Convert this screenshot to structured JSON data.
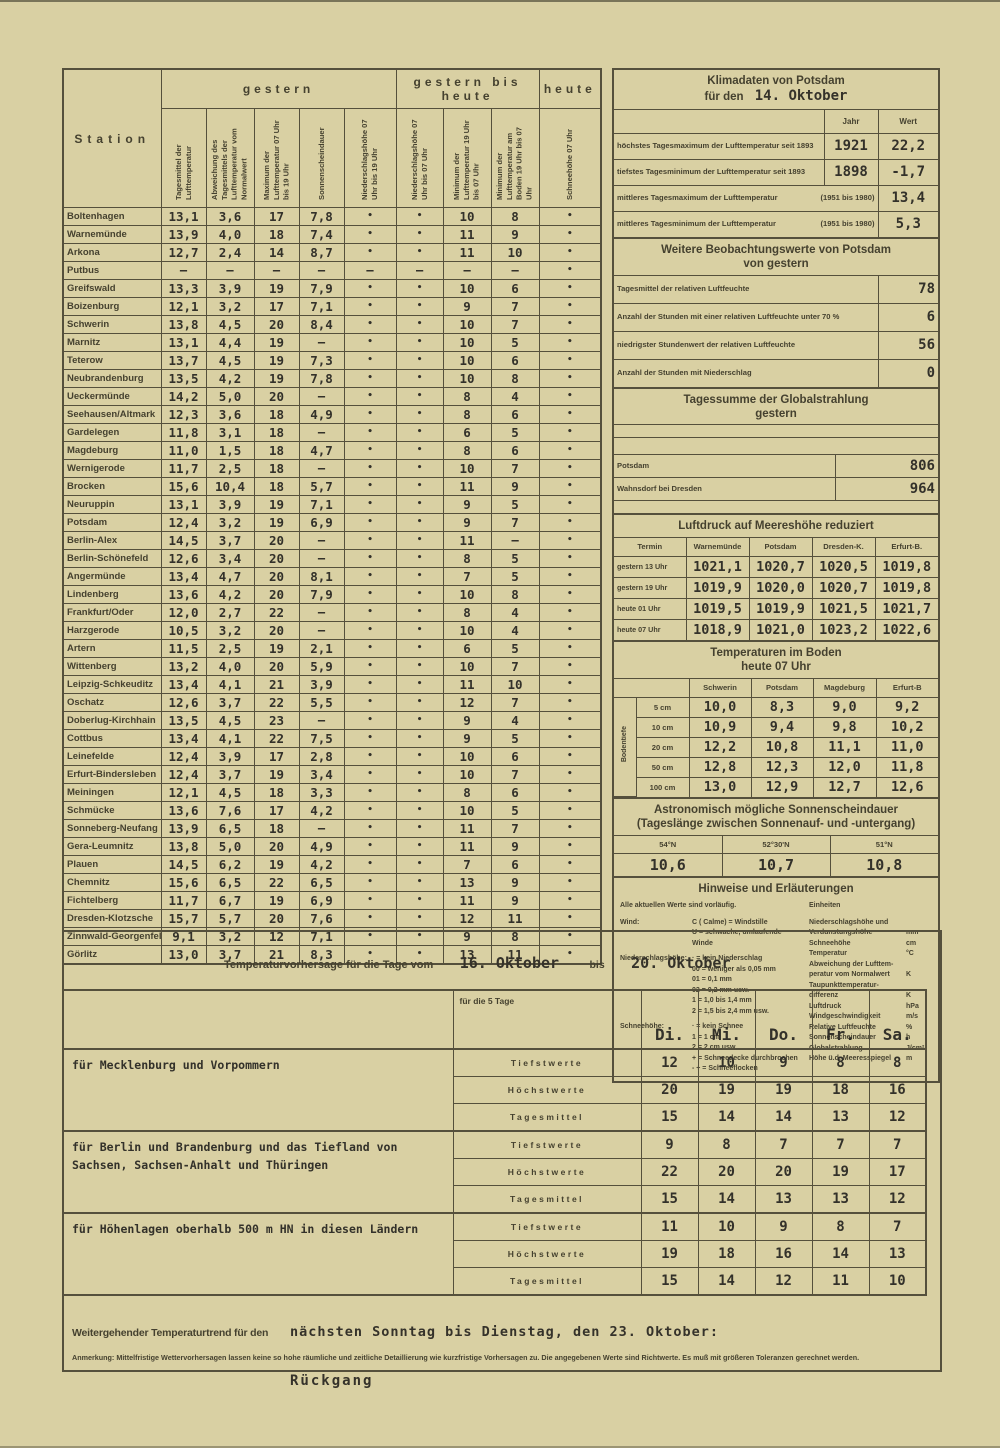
{
  "station_table": {
    "station_header": "Station",
    "groups": [
      {
        "label": "gestern",
        "span": 5
      },
      {
        "label": "gestern bis heute",
        "span": 3
      },
      {
        "label": "heute",
        "span": 1
      }
    ],
    "columns": [
      "Tagesmittel der Lufttemperatur",
      "Abweichung des Tagesmittels der Lufttemperatur vom Normalwert",
      "Maximum der Lufttemperatur 07 Uhr bis 19 Uhr",
      "Sonnenscheindauer",
      "Niederschlagshöhe 07 Uhr bis 19 Uhr",
      "Niederschlagshöhe 07 Uhr bis 07 Uhr",
      "Minimum der Lufttemperatur 19 Uhr bis 07 Uhr",
      "Minimum der Lufttemperatur am Boden 19 Uhr bis 07 Uhr",
      "Schneehöhe 07 Uhr"
    ],
    "rows": [
      {
        "station": "Boltenhagen",
        "values": [
          "13,1",
          "3,6",
          "17",
          "7,8",
          "•",
          "•",
          "10",
          "8",
          "•"
        ]
      },
      {
        "station": "Warnemünde",
        "values": [
          "13,9",
          "4,0",
          "18",
          "7,4",
          "•",
          "•",
          "11",
          "9",
          "•"
        ]
      },
      {
        "station": "Arkona",
        "values": [
          "12,7",
          "2,4",
          "14",
          "8,7",
          "•",
          "•",
          "11",
          "10",
          "•"
        ]
      },
      {
        "station": "Putbus",
        "values": [
          "–",
          "–",
          "–",
          "–",
          "–",
          "–",
          "–",
          "–",
          "•"
        ]
      },
      {
        "station": "Greifswald",
        "values": [
          "13,3",
          "3,9",
          "19",
          "7,9",
          "•",
          "•",
          "10",
          "6",
          "•"
        ]
      },
      {
        "station": "Boizenburg",
        "values": [
          "12,1",
          "3,2",
          "17",
          "7,1",
          "•",
          "•",
          "9",
          "7",
          "•"
        ]
      },
      {
        "station": "Schwerin",
        "values": [
          "13,8",
          "4,5",
          "20",
          "8,4",
          "•",
          "•",
          "10",
          "7",
          "•"
        ]
      },
      {
        "station": "Marnitz",
        "values": [
          "13,1",
          "4,4",
          "19",
          "–",
          "•",
          "•",
          "10",
          "5",
          "•"
        ]
      },
      {
        "station": "Teterow",
        "values": [
          "13,7",
          "4,5",
          "19",
          "7,3",
          "•",
          "•",
          "10",
          "6",
          "•"
        ]
      },
      {
        "station": "Neubrandenburg",
        "values": [
          "13,5",
          "4,2",
          "19",
          "7,8",
          "•",
          "•",
          "10",
          "8",
          "•"
        ]
      },
      {
        "station": "Ueckermünde",
        "values": [
          "14,2",
          "5,0",
          "20",
          "–",
          "•",
          "•",
          "8",
          "4",
          "•"
        ]
      },
      {
        "station": "Seehausen/Altmark",
        "values": [
          "12,3",
          "3,6",
          "18",
          "4,9",
          "•",
          "•",
          "8",
          "6",
          "•"
        ]
      },
      {
        "station": "Gardelegen",
        "values": [
          "11,8",
          "3,1",
          "18",
          "–",
          "•",
          "•",
          "6",
          "5",
          "•"
        ]
      },
      {
        "station": "Magdeburg",
        "values": [
          "11,0",
          "1,5",
          "18",
          "4,7",
          "•",
          "•",
          "8",
          "6",
          "•"
        ]
      },
      {
        "station": "Wernigerode",
        "values": [
          "11,7",
          "2,5",
          "18",
          "–",
          "•",
          "•",
          "10",
          "7",
          "•"
        ]
      },
      {
        "station": "Brocken",
        "values": [
          "15,6",
          "10,4",
          "18",
          "5,7",
          "•",
          "•",
          "11",
          "9",
          "•"
        ]
      },
      {
        "station": "Neuruppin",
        "values": [
          "13,1",
          "3,9",
          "19",
          "7,1",
          "•",
          "•",
          "9",
          "5",
          "•"
        ]
      },
      {
        "station": "Potsdam",
        "values": [
          "12,4",
          "3,2",
          "19",
          "6,9",
          "•",
          "•",
          "9",
          "7",
          "•"
        ]
      },
      {
        "station": "Berlin-Alex",
        "values": [
          "14,5",
          "3,7",
          "20",
          "–",
          "•",
          "•",
          "11",
          "–",
          "•"
        ]
      },
      {
        "station": "Berlin-Schönefeld",
        "values": [
          "12,6",
          "3,4",
          "20",
          "–",
          "•",
          "•",
          "8",
          "5",
          "•"
        ]
      },
      {
        "station": "Angermünde",
        "values": [
          "13,4",
          "4,7",
          "20",
          "8,1",
          "•",
          "•",
          "7",
          "5",
          "•"
        ]
      },
      {
        "station": "Lindenberg",
        "values": [
          "13,6",
          "4,2",
          "20",
          "7,9",
          "•",
          "•",
          "10",
          "8",
          "•"
        ]
      },
      {
        "station": "Frankfurt/Oder",
        "values": [
          "12,0",
          "2,7",
          "22",
          "–",
          "•",
          "•",
          "8",
          "4",
          "•"
        ]
      },
      {
        "station": "Harzgerode",
        "values": [
          "10,5",
          "3,2",
          "20",
          "–",
          "•",
          "•",
          "10",
          "4",
          "•"
        ]
      },
      {
        "station": "Artern",
        "values": [
          "11,5",
          "2,5",
          "19",
          "2,1",
          "•",
          "•",
          "6",
          "5",
          "•"
        ]
      },
      {
        "station": "Wittenberg",
        "values": [
          "13,2",
          "4,0",
          "20",
          "5,9",
          "•",
          "•",
          "10",
          "7",
          "•"
        ]
      },
      {
        "station": "Leipzig-Schkeuditz",
        "values": [
          "13,4",
          "4,1",
          "21",
          "3,9",
          "•",
          "•",
          "11",
          "10",
          "•"
        ]
      },
      {
        "station": "Oschatz",
        "values": [
          "12,6",
          "3,7",
          "22",
          "5,5",
          "•",
          "•",
          "12",
          "7",
          "•"
        ]
      },
      {
        "station": "Doberlug-Kirchhain",
        "values": [
          "13,5",
          "4,5",
          "23",
          "–",
          "•",
          "•",
          "9",
          "4",
          "•"
        ]
      },
      {
        "station": "Cottbus",
        "values": [
          "13,4",
          "4,1",
          "22",
          "7,5",
          "•",
          "•",
          "9",
          "5",
          "•"
        ]
      },
      {
        "station": "Leinefelde",
        "values": [
          "12,4",
          "3,9",
          "17",
          "2,8",
          "•",
          "•",
          "10",
          "6",
          "•"
        ]
      },
      {
        "station": "Erfurt-Bindersleben",
        "values": [
          "12,4",
          "3,7",
          "19",
          "3,4",
          "•",
          "•",
          "10",
          "7",
          "•"
        ]
      },
      {
        "station": "Meiningen",
        "values": [
          "12,1",
          "4,5",
          "18",
          "3,3",
          "•",
          "•",
          "8",
          "6",
          "•"
        ]
      },
      {
        "station": "Schmücke",
        "values": [
          "13,6",
          "7,6",
          "17",
          "4,2",
          "•",
          "•",
          "10",
          "5",
          "•"
        ]
      },
      {
        "station": "Sonneberg-Neufang",
        "values": [
          "13,9",
          "6,5",
          "18",
          "–",
          "•",
          "•",
          "11",
          "7",
          "•"
        ]
      },
      {
        "station": "Gera-Leumnitz",
        "values": [
          "13,8",
          "5,0",
          "20",
          "4,9",
          "•",
          "•",
          "11",
          "9",
          "•"
        ]
      },
      {
        "station": "Plauen",
        "values": [
          "14,5",
          "6,2",
          "19",
          "4,2",
          "•",
          "•",
          "7",
          "6",
          "•"
        ]
      },
      {
        "station": "Chemnitz",
        "values": [
          "15,6",
          "6,5",
          "22",
          "6,5",
          "•",
          "•",
          "13",
          "9",
          "•"
        ]
      },
      {
        "station": "Fichtelberg",
        "values": [
          "11,7",
          "6,7",
          "19",
          "6,9",
          "•",
          "•",
          "11",
          "9",
          "•"
        ]
      },
      {
        "station": "Dresden-Klotzsche",
        "values": [
          "15,7",
          "5,7",
          "20",
          "7,6",
          "•",
          "•",
          "12",
          "11",
          "•"
        ]
      },
      {
        "station": "Zinnwald-Georgenfeld",
        "values": [
          "9,1",
          "3,2",
          "12",
          "7,1",
          "•",
          "•",
          "9",
          "8",
          "•"
        ]
      },
      {
        "station": "Görlitz",
        "values": [
          "13,0",
          "3,7",
          "21",
          "8,3",
          "•",
          "•",
          "13",
          "11",
          "•"
        ]
      }
    ]
  },
  "klimadaten": {
    "title_line1": "Klimadaten von Potsdam",
    "title_line2_label": "für den",
    "title_line2_date": "14. Oktober",
    "col_jahr": "Jahr",
    "col_wert": "Wert",
    "rows": [
      {
        "label": "höchstes Tagesmaximum der Lufttemperatur seit 1893",
        "period": "",
        "jahr": "1921",
        "wert": "22,2"
      },
      {
        "label": "tiefstes Tagesminimum der Lufttemperatur seit 1893",
        "period": "",
        "jahr": "1898",
        "wert": "-1,7"
      },
      {
        "label": "mittleres Tagesmaximum der Lufttemperatur",
        "period": "(1951 bis 1980)",
        "jahr": "",
        "wert": "13,4"
      },
      {
        "label": "mittleres Tagesminimum der Lufttemperatur",
        "period": "(1951 bis 1980)",
        "jahr": "",
        "wert": "5,3"
      }
    ]
  },
  "beobachtung": {
    "title_line1": "Weitere Beobachtungswerte von Potsdam",
    "title_line2": "von gestern",
    "rows": [
      {
        "label": "Tagesmittel der relativen Luftfeuchte",
        "value": "78"
      },
      {
        "label": "Anzahl der Stunden mit einer relativen Luftfeuchte unter 70 %",
        "value": "6"
      },
      {
        "label": "niedrigster Stundenwert der relativen Luftfeuchte",
        "value": "56"
      },
      {
        "label": "Anzahl der Stunden mit Niederschlag",
        "value": "0"
      }
    ]
  },
  "globalstrahlung": {
    "title_line1": "Tagessumme der Globalstrahlung",
    "title_line2": "gestern",
    "rows": [
      {
        "label": "Potsdam",
        "value": "806"
      },
      {
        "label": "Wahnsdorf bei Dresden",
        "value": "964"
      }
    ]
  },
  "luftdruck": {
    "title": "Luftdruck auf Meereshöhe reduziert",
    "headers": [
      "Termin",
      "Warnemünde",
      "Potsdam",
      "Dresden-K.",
      "Erfurt-B."
    ],
    "rows": [
      {
        "termin": "gestern 13 Uhr",
        "values": [
          "1021,1",
          "1020,7",
          "1020,5",
          "1019,8"
        ]
      },
      {
        "termin": "gestern 19 Uhr",
        "values": [
          "1019,9",
          "1020,0",
          "1020,7",
          "1019,8"
        ]
      },
      {
        "termin": "heute 01 Uhr",
        "values": [
          "1019,5",
          "1019,9",
          "1021,5",
          "1021,7"
        ]
      },
      {
        "termin": "heute 07 Uhr",
        "values": [
          "1018,9",
          "1021,0",
          "1023,2",
          "1022,6"
        ]
      }
    ]
  },
  "boden": {
    "title_line1": "Temperaturen im Boden",
    "title_line2": "heute 07 Uhr",
    "side_label": "Bodentiefe",
    "headers": [
      "Schwerin",
      "Potsdam",
      "Magdeburg",
      "Erfurt-B"
    ],
    "rows": [
      {
        "depth": "5 cm",
        "values": [
          "10,0",
          "8,3",
          "9,0",
          "9,2"
        ]
      },
      {
        "depth": "10 cm",
        "values": [
          "10,9",
          "9,4",
          "9,8",
          "10,2"
        ]
      },
      {
        "depth": "20 cm",
        "values": [
          "12,2",
          "10,8",
          "11,1",
          "11,0"
        ]
      },
      {
        "depth": "50 cm",
        "values": [
          "12,8",
          "12,3",
          "12,0",
          "11,8"
        ]
      },
      {
        "depth": "100 cm",
        "values": [
          "13,0",
          "12,9",
          "12,7",
          "12,6"
        ]
      }
    ]
  },
  "sonnenschein": {
    "title_line1": "Astronomisch mögliche Sonnenscheindauer",
    "title_line2": "(Tageslänge zwischen Sonnenauf- und -untergang)",
    "cols": [
      {
        "lat": "54°N",
        "value": "10,6"
      },
      {
        "lat": "52°30'N",
        "value": "10,7"
      },
      {
        "lat": "51°N",
        "value": "10,8"
      }
    ]
  },
  "hinweise": {
    "title": "Hinweise und Erläuterungen",
    "vorlaeufig": "Alle aktuellen Werte sind vorläufig.",
    "einheiten_title": "Einheiten",
    "defs": [
      {
        "label": "Wind:",
        "lines": [
          "C ( Calme) = Windstille",
          "U = schwache, umlaufende Winde"
        ]
      },
      {
        "label": "Niederschlagshöhe:",
        "lines": [
          "· = kein Niederschlag",
          "00 = weniger als 0,05 mm",
          "01 = 0,1 mm",
          "02 = 0,2 mm usw.",
          "1 = 1,0 bis 1,4 mm",
          "2 = 1,5 bis 2,4 mm usw."
        ]
      },
      {
        "label": "Schneehöhe:",
        "lines": [
          "· = kein Schnee",
          "1 = 1 cm",
          "2 = 2 cm usw",
          "+ = Schneedecke durchbrochen",
          "- + = Schneeflocken"
        ]
      }
    ],
    "einheiten": [
      {
        "label": "Niederschlagshöhe und",
        "unit": ""
      },
      {
        "label": "Verdunstungshöhe",
        "unit": "mm"
      },
      {
        "label": "Schneehöhe",
        "unit": "cm"
      },
      {
        "label": "Temperatur",
        "unit": "°C"
      },
      {
        "label": "Abweichung der Lufttem-",
        "unit": ""
      },
      {
        "label": "peratur vom Normalwert",
        "unit": "K"
      },
      {
        "label": "Taupunkttemperatur-",
        "unit": ""
      },
      {
        "label": "differenz",
        "unit": "K"
      },
      {
        "label": "Luftdruck",
        "unit": "hPa"
      },
      {
        "label": "Windgeschwindigkeit",
        "unit": "m/s"
      },
      {
        "label": "Relative Luftfeuchte",
        "unit": "%"
      },
      {
        "label": "Sonnenscheindauer",
        "unit": "h"
      },
      {
        "label": "Globalstrahlung",
        "unit": "J/cm²"
      },
      {
        "label": "Höhe ü.d. Meeresspiegel",
        "unit": "m"
      }
    ]
  },
  "forecast": {
    "title_label": "Temperaturvorhersage für die Tage vom",
    "date_from": "16. Oktober",
    "bis_label": "bis",
    "date_to": "20. Oktober",
    "col_label": "für die 5 Tage",
    "days": [
      "Di.",
      "Mi.",
      "Do.",
      "Fr.",
      "Sa."
    ],
    "groups": [
      {
        "region": "für Mecklenburg und Vorpommern",
        "rows": [
          {
            "label": "Tiefstwerte",
            "values": [
              "12",
              "10",
              "9",
              "8",
              "8"
            ]
          },
          {
            "label": "Höchstwerte",
            "values": [
              "20",
              "19",
              "19",
              "18",
              "16"
            ]
          },
          {
            "label": "Tagesmittel",
            "values": [
              "15",
              "14",
              "14",
              "13",
              "12"
            ]
          }
        ]
      },
      {
        "region": "für Berlin und Brandenburg und das Tiefland von Sachsen, Sachsen-Anhalt und Thüringen",
        "rows": [
          {
            "label": "Tiefstwerte",
            "values": [
              "9",
              "8",
              "7",
              "7",
              "7"
            ]
          },
          {
            "label": "Höchstwerte",
            "values": [
              "22",
              "20",
              "20",
              "19",
              "17"
            ]
          },
          {
            "label": "Tagesmittel",
            "values": [
              "15",
              "14",
              "13",
              "13",
              "12"
            ]
          }
        ]
      },
      {
        "region": "für Höhenlagen oberhalb 500 m HN in diesen Ländern",
        "rows": [
          {
            "label": "Tiefstwerte",
            "values": [
              "11",
              "10",
              "9",
              "8",
              "7"
            ]
          },
          {
            "label": "Höchstwerte",
            "values": [
              "19",
              "18",
              "16",
              "14",
              "13"
            ]
          },
          {
            "label": "Tagesmittel",
            "values": [
              "15",
              "14",
              "12",
              "11",
              "10"
            ]
          }
        ]
      }
    ]
  },
  "trend": {
    "label": "Weitergehender Temperaturtrend für den",
    "typed": "nächsten Sonntag bis Dienstag, den 23. Oktober:",
    "value": "Rückgang"
  },
  "anmerkung": "Anmerkung:  Mittelfristige Wettervorhersagen lassen keine so hohe räumliche und zeitliche Detaillierung wie kurzfristige Vorhersagen zu. Die angegebenen Werte sind Richtwerte. Es muß mit größeren Toleranzen gerechnet werden."
}
